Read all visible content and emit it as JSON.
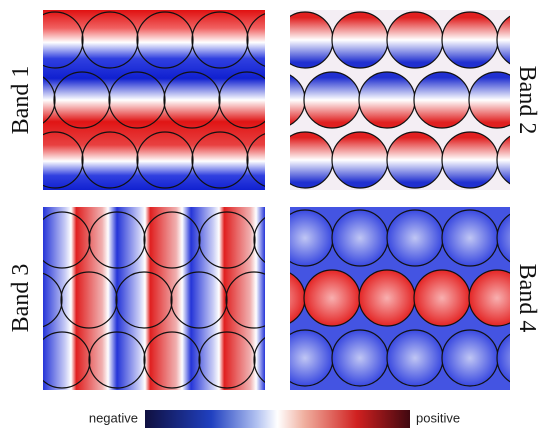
{
  "panels": [
    {
      "label": "Band 1"
    },
    {
      "label": "Band 2"
    },
    {
      "label": "Band 3"
    },
    {
      "label": "Band 4"
    }
  ],
  "colorbar": {
    "low_label": "negative",
    "high_label": "positive"
  }
}
